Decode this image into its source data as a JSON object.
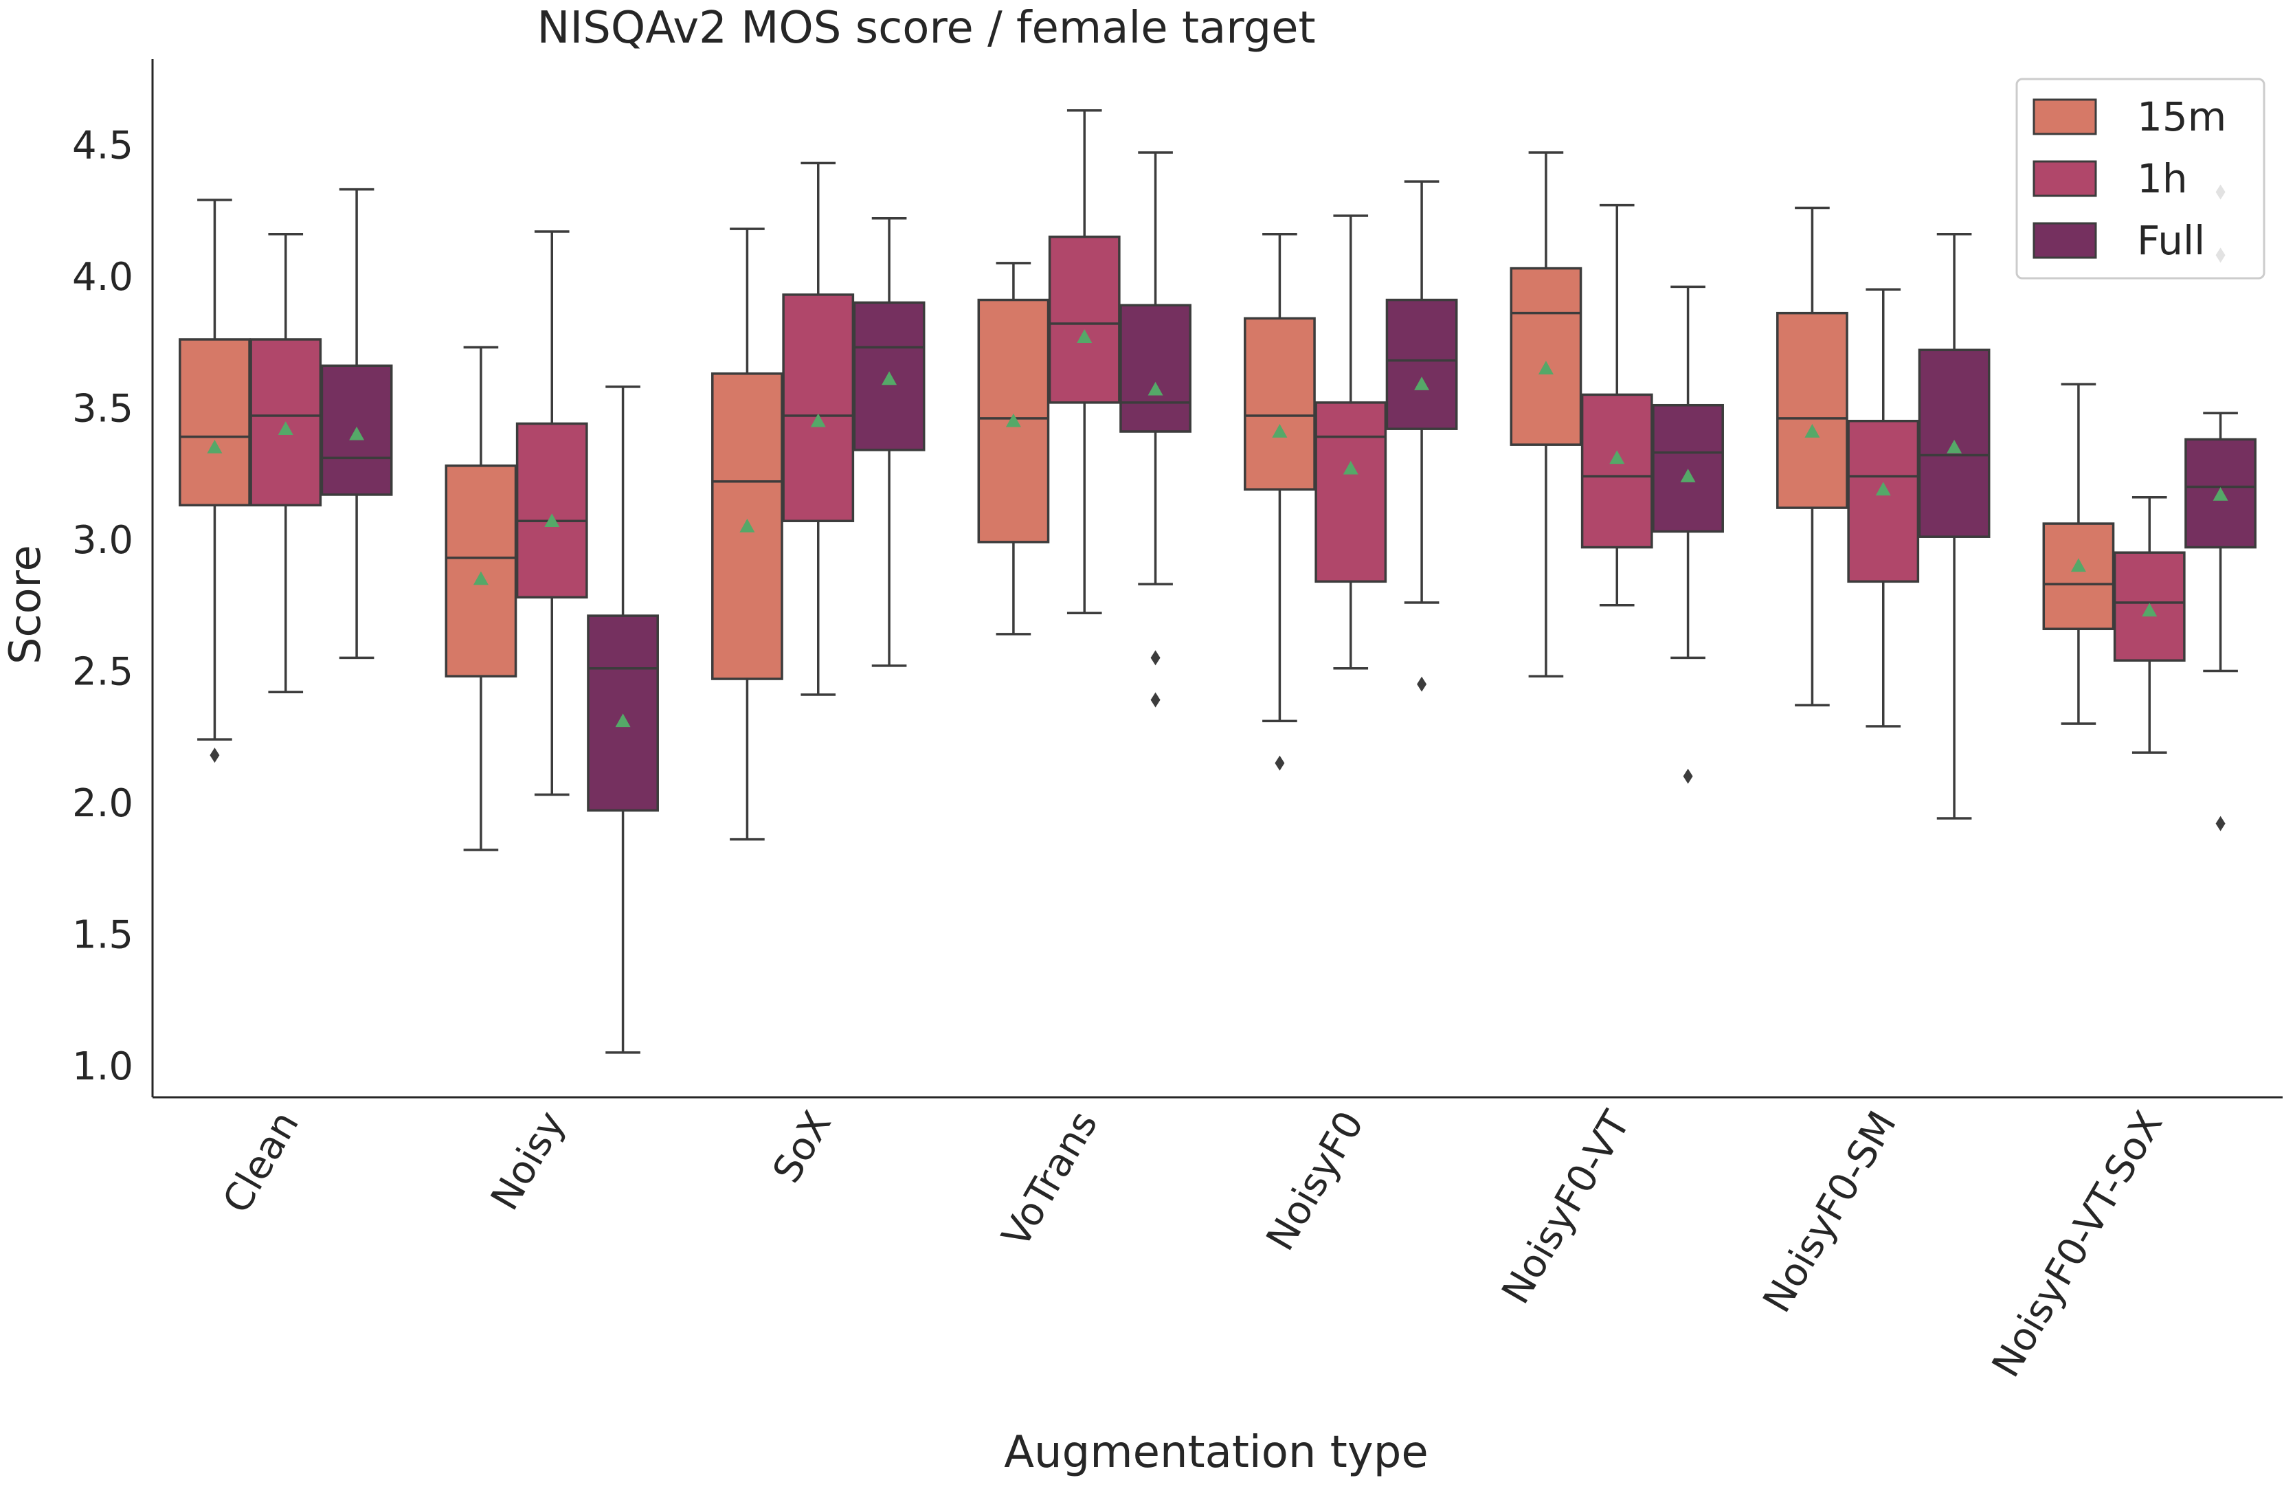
{
  "chart_data": {
    "type": "box",
    "title": "NISQAv2 MOS score / female target",
    "xlabel": "Augmentation type",
    "ylabel": "Score",
    "ylim": [
      0.88,
      4.82
    ],
    "yticks": [
      "1.0",
      "1.5",
      "2.0",
      "2.5",
      "3.0",
      "3.5",
      "4.0",
      "4.5"
    ],
    "categories": [
      "Clean",
      "Noisy",
      "SoX",
      "VoTrans",
      "NoisyF0",
      "NoisyF0-VT",
      "NoisyF0-SM",
      "NoisyF0-VT-SoX"
    ],
    "legend_position": "top-right",
    "series": [
      {
        "name": "15m",
        "color": "#d67967",
        "boxes": [
          {
            "whislo": 2.24,
            "q1": 3.13,
            "med": 3.39,
            "q3": 3.76,
            "whishi": 4.29,
            "mean": 3.35,
            "fliers": [
              2.18
            ]
          },
          {
            "whislo": 1.82,
            "q1": 2.48,
            "med": 2.93,
            "q3": 3.28,
            "whishi": 3.73,
            "mean": 2.85,
            "fliers": []
          },
          {
            "whislo": 1.86,
            "q1": 2.47,
            "med": 3.22,
            "q3": 3.63,
            "whishi": 4.18,
            "mean": 3.05,
            "fliers": []
          },
          {
            "whislo": 2.64,
            "q1": 2.99,
            "med": 3.46,
            "q3": 3.91,
            "whishi": 4.05,
            "mean": 3.45,
            "fliers": []
          },
          {
            "whislo": 2.31,
            "q1": 3.19,
            "med": 3.47,
            "q3": 3.84,
            "whishi": 4.16,
            "mean": 3.41,
            "fliers": [
              2.15
            ]
          },
          {
            "whislo": 2.48,
            "q1": 3.36,
            "med": 3.86,
            "q3": 4.03,
            "whishi": 4.47,
            "mean": 3.65,
            "fliers": []
          },
          {
            "whislo": 2.37,
            "q1": 3.12,
            "med": 3.46,
            "q3": 3.86,
            "whishi": 4.26,
            "mean": 3.41,
            "fliers": []
          },
          {
            "whislo": 2.3,
            "q1": 2.66,
            "med": 2.83,
            "q3": 3.06,
            "whishi": 3.59,
            "mean": 2.9,
            "fliers": []
          }
        ]
      },
      {
        "name": "1h",
        "color": "#b0476a",
        "boxes": [
          {
            "whislo": 2.42,
            "q1": 3.13,
            "med": 3.47,
            "q3": 3.76,
            "whishi": 4.16,
            "mean": 3.42,
            "fliers": []
          },
          {
            "whislo": 2.03,
            "q1": 2.78,
            "med": 3.07,
            "q3": 3.44,
            "whishi": 4.17,
            "mean": 3.07,
            "fliers": []
          },
          {
            "whislo": 2.41,
            "q1": 3.07,
            "med": 3.47,
            "q3": 3.93,
            "whishi": 4.43,
            "mean": 3.45,
            "fliers": []
          },
          {
            "whislo": 2.72,
            "q1": 3.52,
            "med": 3.82,
            "q3": 4.15,
            "whishi": 4.63,
            "mean": 3.77,
            "fliers": []
          },
          {
            "whislo": 2.51,
            "q1": 2.84,
            "med": 3.39,
            "q3": 3.52,
            "whishi": 4.23,
            "mean": 3.27,
            "fliers": []
          },
          {
            "whislo": 2.75,
            "q1": 2.97,
            "med": 3.24,
            "q3": 3.55,
            "whishi": 4.27,
            "mean": 3.31,
            "fliers": []
          },
          {
            "whislo": 2.29,
            "q1": 2.84,
            "med": 3.24,
            "q3": 3.45,
            "whishi": 3.95,
            "mean": 3.19,
            "fliers": []
          },
          {
            "whislo": 2.19,
            "q1": 2.54,
            "med": 2.76,
            "q3": 2.95,
            "whishi": 3.16,
            "mean": 2.73,
            "fliers": []
          }
        ]
      },
      {
        "name": "Full",
        "color": "#75305f",
        "boxes": [
          {
            "whislo": 2.55,
            "q1": 3.17,
            "med": 3.31,
            "q3": 3.66,
            "whishi": 4.33,
            "mean": 3.4,
            "fliers": []
          },
          {
            "whislo": 1.05,
            "q1": 1.97,
            "med": 2.51,
            "q3": 2.71,
            "whishi": 3.58,
            "mean": 2.31,
            "fliers": []
          },
          {
            "whislo": 2.52,
            "q1": 3.34,
            "med": 3.73,
            "q3": 3.9,
            "whishi": 4.22,
            "mean": 3.61,
            "fliers": []
          },
          {
            "whislo": 2.83,
            "q1": 3.41,
            "med": 3.52,
            "q3": 3.89,
            "whishi": 4.47,
            "mean": 3.57,
            "fliers": [
              2.55,
              2.39
            ]
          },
          {
            "whislo": 2.76,
            "q1": 3.42,
            "med": 3.68,
            "q3": 3.91,
            "whishi": 4.36,
            "mean": 3.59,
            "fliers": [
              2.45
            ]
          },
          {
            "whislo": 2.55,
            "q1": 3.03,
            "med": 3.33,
            "q3": 3.51,
            "whishi": 3.96,
            "mean": 3.24,
            "fliers": [
              2.1
            ]
          },
          {
            "whislo": 1.94,
            "q1": 3.01,
            "med": 3.32,
            "q3": 3.72,
            "whishi": 4.16,
            "mean": 3.35,
            "fliers": []
          },
          {
            "whislo": 2.5,
            "q1": 2.97,
            "med": 3.2,
            "q3": 3.38,
            "whishi": 3.48,
            "mean": 3.17,
            "fliers": [
              1.92,
              4.08,
              4.32
            ]
          }
        ]
      }
    ]
  }
}
